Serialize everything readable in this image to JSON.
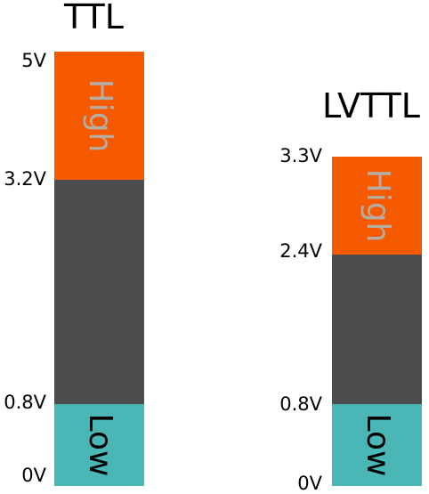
{
  "colors": {
    "high": "#f55a00",
    "undefined": "#4d4d4d",
    "low": "#4bb6b6",
    "high_text": "#b7aca3",
    "low_text": "#000000"
  },
  "ttl": {
    "title": "TTL",
    "high_label": "High",
    "low_label": "Low",
    "ticks": {
      "v5": "5V",
      "v32": "3.2V",
      "v08": "0.8V",
      "v0": "0V"
    }
  },
  "lvttl": {
    "title": "LVTTL",
    "high_label": "High",
    "low_label": "Low",
    "ticks": {
      "v33": "3.3V",
      "v24": "2.4V",
      "v08": "0.8V",
      "v0": "0V"
    }
  }
}
